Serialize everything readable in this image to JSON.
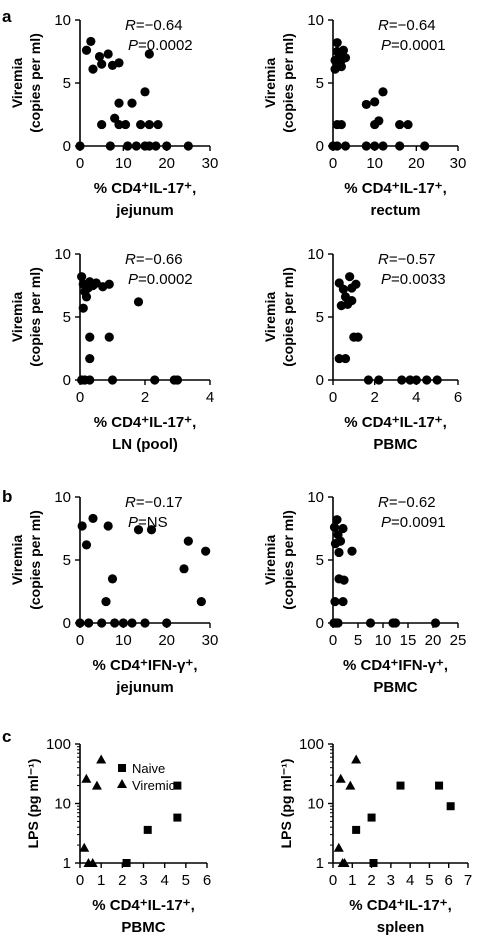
{
  "panel_labels": [
    "a",
    "b",
    "c"
  ],
  "legend": {
    "naive": "Naive",
    "viremic": "Viremic"
  },
  "chart_data": [
    {
      "id": "a1",
      "type": "scatter",
      "ylabel": [
        "Viremia",
        "(copies per ml)"
      ],
      "xlabel": [
        "% CD4⁺IL-17⁺,",
        "jejunum"
      ],
      "stat_r": "R=−0.64",
      "stat_p": "P=0.0002",
      "xlim": [
        0,
        30
      ],
      "xticks": [
        0,
        10,
        20,
        30
      ],
      "ylim": [
        0,
        10
      ],
      "yticks": [
        0,
        5,
        10
      ],
      "yscale": "linear",
      "series": [
        {
          "marker": "circle",
          "points": [
            [
              1.5,
              7.6
            ],
            [
              2.5,
              8.3
            ],
            [
              3,
              6.1
            ],
            [
              4.5,
              7.1
            ],
            [
              5,
              6.5
            ],
            [
              6.5,
              7.3
            ],
            [
              7.5,
              6.4
            ],
            [
              9,
              6.6
            ],
            [
              9,
              3.4
            ],
            [
              8,
              2.2
            ],
            [
              5,
              1.7
            ],
            [
              9,
              1.7
            ],
            [
              10.5,
              1.7
            ],
            [
              12,
              3.4
            ],
            [
              14,
              1.7
            ],
            [
              16,
              7.3
            ],
            [
              15,
              4.3
            ],
            [
              16,
              1.7
            ],
            [
              18,
              1.7
            ],
            [
              7,
              0
            ],
            [
              11,
              0
            ],
            [
              13,
              0
            ],
            [
              15,
              0
            ],
            [
              16,
              0
            ],
            [
              17.5,
              0
            ],
            [
              20,
              0
            ],
            [
              25,
              0
            ],
            [
              0,
              0
            ]
          ]
        }
      ]
    },
    {
      "id": "a2",
      "type": "scatter",
      "ylabel": [
        "Viremia",
        "(copies per ml)"
      ],
      "xlabel": [
        "% CD4⁺IL-17⁺,",
        "rectum"
      ],
      "stat_r": "R=−0.64",
      "stat_p": "P=0.0001",
      "xlim": [
        0,
        30
      ],
      "xticks": [
        0,
        10,
        20,
        30
      ],
      "ylim": [
        0,
        10
      ],
      "yticks": [
        0,
        5,
        10
      ],
      "yscale": "linear",
      "series": [
        {
          "marker": "circle",
          "points": [
            [
              0.5,
              6.8
            ],
            [
              1,
              7.5
            ],
            [
              1,
              8.2
            ],
            [
              1.5,
              7.2
            ],
            [
              2,
              6.3
            ],
            [
              2.5,
              7.6
            ],
            [
              1,
              6.5
            ],
            [
              2,
              6.8
            ],
            [
              0.5,
              6.1
            ],
            [
              3,
              7.0
            ],
            [
              1,
              1.7
            ],
            [
              2,
              1.7
            ],
            [
              8,
              3.3
            ],
            [
              10,
              3.5
            ],
            [
              12,
              4.3
            ],
            [
              11,
              2.0
            ],
            [
              10,
              1.7
            ],
            [
              16,
              1.7
            ],
            [
              18,
              1.7
            ],
            [
              0,
              0
            ],
            [
              1,
              0
            ],
            [
              3,
              0
            ],
            [
              8,
              0
            ],
            [
              10,
              0
            ],
            [
              12,
              0
            ],
            [
              16,
              0
            ],
            [
              22,
              0
            ]
          ]
        }
      ]
    },
    {
      "id": "a3",
      "type": "scatter",
      "ylabel": [
        "Viremia",
        "(copies per ml)"
      ],
      "xlabel": [
        "% CD4⁺IL-17⁺,",
        "LN (pool)"
      ],
      "stat_r": "R=−0.66",
      "stat_p": "P=0.0002",
      "xlim": [
        0,
        4
      ],
      "xticks": [
        0,
        2,
        4
      ],
      "ylim": [
        0,
        10
      ],
      "yticks": [
        0,
        5,
        10
      ],
      "yscale": "linear",
      "series": [
        {
          "marker": "circle",
          "points": [
            [
              0.05,
              8.2
            ],
            [
              0.1,
              7.6
            ],
            [
              0.15,
              7.0
            ],
            [
              0.2,
              6.6
            ],
            [
              0.25,
              7.3
            ],
            [
              0.3,
              7.8
            ],
            [
              0.4,
              7.5
            ],
            [
              0.5,
              7.7
            ],
            [
              0.7,
              7.4
            ],
            [
              0.9,
              7.6
            ],
            [
              0.1,
              5.7
            ],
            [
              0.3,
              3.4
            ],
            [
              0.3,
              1.7
            ],
            [
              0.9,
              3.4
            ],
            [
              1.8,
              6.2
            ],
            [
              0.05,
              0
            ],
            [
              0.15,
              0
            ],
            [
              0.3,
              0
            ],
            [
              1.0,
              0
            ],
            [
              2.3,
              0
            ],
            [
              2.9,
              0
            ],
            [
              3.0,
              0
            ]
          ]
        }
      ]
    },
    {
      "id": "a4",
      "type": "scatter",
      "ylabel": [
        "Viremia",
        "(copies per ml)"
      ],
      "xlabel": [
        "% CD4⁺IL-17⁺,",
        "PBMC"
      ],
      "stat_r": "R=−0.57",
      "stat_p": "P=0.0033",
      "xlim": [
        0,
        6
      ],
      "xticks": [
        0,
        2,
        4,
        6
      ],
      "ylim": [
        0,
        10
      ],
      "yticks": [
        0,
        5,
        10
      ],
      "yscale": "linear",
      "series": [
        {
          "marker": "circle",
          "points": [
            [
              0.3,
              7.7
            ],
            [
              0.5,
              7.2
            ],
            [
              0.6,
              6.6
            ],
            [
              0.8,
              8.2
            ],
            [
              0.9,
              7.3
            ],
            [
              1.1,
              7.6
            ],
            [
              0.7,
              6.0
            ],
            [
              0.9,
              6.3
            ],
            [
              0.4,
              5.9
            ],
            [
              0.3,
              1.7
            ],
            [
              0.6,
              1.7
            ],
            [
              1.0,
              3.4
            ],
            [
              1.2,
              3.4
            ],
            [
              1.7,
              0
            ],
            [
              2.2,
              0
            ],
            [
              3.3,
              0
            ],
            [
              3.7,
              0
            ],
            [
              4.0,
              0
            ],
            [
              4.5,
              0
            ],
            [
              5.0,
              0
            ]
          ]
        }
      ]
    },
    {
      "id": "b1",
      "type": "scatter",
      "ylabel": [
        "Viremia",
        "(copies per ml)"
      ],
      "xlabel": [
        "% CD4⁺IFN-γ⁺,",
        "jejunum"
      ],
      "stat_r": "R=−0.17",
      "stat_p": "P=NS",
      "xlim": [
        0,
        30
      ],
      "xticks": [
        0,
        10,
        20,
        30
      ],
      "ylim": [
        0,
        10
      ],
      "yticks": [
        0,
        5,
        10
      ],
      "yscale": "linear",
      "series": [
        {
          "marker": "circle",
          "points": [
            [
              0.5,
              7.7
            ],
            [
              1.5,
              6.2
            ],
            [
              3,
              8.3
            ],
            [
              6.5,
              7.7
            ],
            [
              6,
              1.7
            ],
            [
              7.5,
              3.5
            ],
            [
              13.5,
              7.4
            ],
            [
              16.5,
              7.4
            ],
            [
              24,
              4.3
            ],
            [
              25,
              6.5
            ],
            [
              28,
              1.7
            ],
            [
              29,
              5.7
            ],
            [
              0,
              0
            ],
            [
              2,
              0
            ],
            [
              5,
              0
            ],
            [
              8,
              0
            ],
            [
              10,
              0
            ],
            [
              12,
              0
            ],
            [
              15,
              0
            ],
            [
              20,
              0
            ]
          ]
        }
      ]
    },
    {
      "id": "b2",
      "type": "scatter",
      "ylabel": [
        "Viremia",
        "(copies per ml)"
      ],
      "xlabel": [
        "% CD4⁺IFN-γ⁺,",
        "PBMC"
      ],
      "stat_r": "R=−0.62",
      "stat_p": "P=0.0091",
      "xlim": [
        0,
        25
      ],
      "xticks": [
        0,
        5,
        10,
        15,
        20,
        25
      ],
      "ylim": [
        0,
        10
      ],
      "yticks": [
        0,
        5,
        10
      ],
      "yscale": "linear",
      "series": [
        {
          "marker": "circle",
          "points": [
            [
              0.3,
              7.6
            ],
            [
              0.8,
              8.2
            ],
            [
              1.0,
              7.0
            ],
            [
              1.5,
              6.5
            ],
            [
              2.0,
              7.5
            ],
            [
              0.5,
              6.3
            ],
            [
              1.2,
              5.6
            ],
            [
              3.8,
              5.7
            ],
            [
              0.4,
              1.7
            ],
            [
              1.2,
              3.5
            ],
            [
              2.2,
              3.4
            ],
            [
              2.0,
              1.7
            ],
            [
              0.2,
              0
            ],
            [
              0.6,
              0
            ],
            [
              1.0,
              0
            ],
            [
              7.5,
              0
            ],
            [
              12,
              0
            ],
            [
              12.5,
              0
            ],
            [
              20.5,
              0
            ]
          ]
        }
      ]
    },
    {
      "id": "c1",
      "type": "scatter",
      "ylabel": [
        "LPS (pg ml⁻¹)"
      ],
      "xlabel": [
        "% CD4⁺IL-17⁺,",
        "PBMC"
      ],
      "xlim": [
        0,
        6
      ],
      "xticks": [
        0,
        1,
        2,
        3,
        4,
        5,
        6
      ],
      "ylim": [
        1,
        100
      ],
      "yticks": [
        1,
        10,
        100
      ],
      "yscale": "log",
      "legend_position": "top-right",
      "series": [
        {
          "legend_key": "naive",
          "marker": "square",
          "points": [
            [
              2.2,
              1.0
            ],
            [
              3.2,
              3.6
            ],
            [
              4.6,
              20
            ],
            [
              4.6,
              5.8
            ]
          ]
        },
        {
          "legend_key": "viremic",
          "marker": "triangle",
          "points": [
            [
              0.2,
              1.8
            ],
            [
              0.3,
              26
            ],
            [
              0.4,
              1.0
            ],
            [
              0.6,
              1.0
            ],
            [
              0.8,
              20
            ],
            [
              1.0,
              55
            ]
          ]
        }
      ]
    },
    {
      "id": "c2",
      "type": "scatter",
      "ylabel": [
        "LPS (pg ml⁻¹)"
      ],
      "xlabel": [
        "% CD4⁺IL-17⁺,",
        "spleen"
      ],
      "xlim": [
        0,
        7
      ],
      "xticks": [
        0,
        1,
        2,
        3,
        4,
        5,
        6,
        7
      ],
      "ylim": [
        1,
        100
      ],
      "yticks": [
        1,
        10,
        100
      ],
      "yscale": "log",
      "series": [
        {
          "legend_key": "naive",
          "marker": "square",
          "points": [
            [
              1.2,
              3.6
            ],
            [
              2.0,
              5.8
            ],
            [
              2.1,
              1.0
            ],
            [
              3.5,
              20
            ],
            [
              5.5,
              20
            ],
            [
              6.1,
              9.0
            ]
          ]
        },
        {
          "legend_key": "viremic",
          "marker": "triangle",
          "points": [
            [
              0.3,
              1.8
            ],
            [
              0.4,
              26
            ],
            [
              0.6,
              1.0
            ],
            [
              0.9,
              20
            ],
            [
              1.2,
              55
            ],
            [
              0.5,
              1.0
            ]
          ]
        }
      ]
    }
  ]
}
